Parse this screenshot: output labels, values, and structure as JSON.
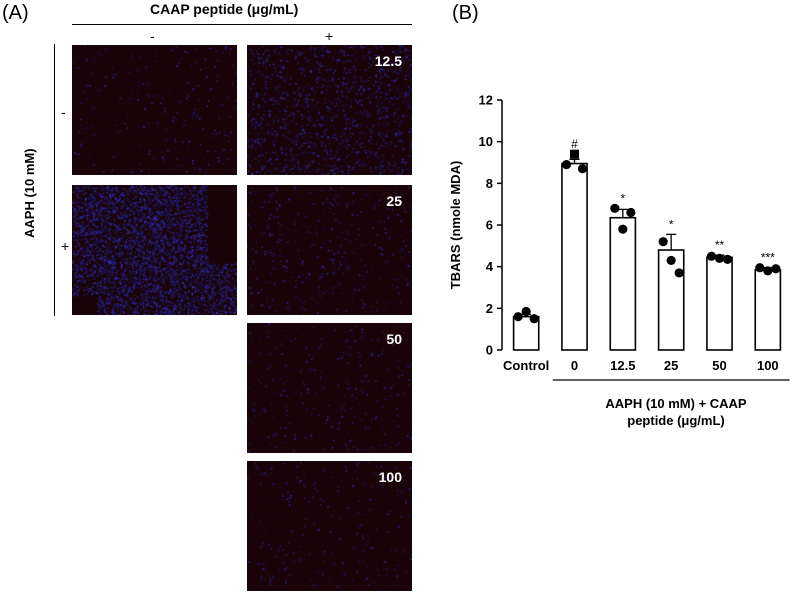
{
  "panel_a": {
    "label": "(A)",
    "column_header": "CAAP peptide (μg/mL)",
    "col_minus": "-",
    "col_plus": "+",
    "row_header": "AAPH (10 mM)",
    "row_minus": "-",
    "row_plus": "+",
    "tiles": [
      {
        "id": "r1c1",
        "label": "",
        "intensity": 0.05
      },
      {
        "id": "r1c2",
        "label": "12.5",
        "intensity": 0.25
      },
      {
        "id": "r2c1",
        "label": "",
        "intensity": 0.9
      },
      {
        "id": "r2c2",
        "label": "25",
        "intensity": 0.08
      },
      {
        "id": "r3c2",
        "label": "50",
        "intensity": 0.06
      },
      {
        "id": "r4c2",
        "label": "100",
        "intensity": 0.05
      }
    ]
  },
  "panel_b": {
    "label": "(B)",
    "group_caption_line1": "AAPH (10 mM) + CAAP",
    "group_caption_line2": "peptide (μg/mL)"
  },
  "chart_data": {
    "type": "bar",
    "categories": [
      "Control",
      "0",
      "12.5",
      "25",
      "50",
      "100"
    ],
    "values": [
      1.6,
      8.95,
      6.35,
      4.8,
      4.45,
      3.85
    ],
    "errors": [
      0.1,
      0.2,
      0.4,
      0.75,
      0.1,
      0.1
    ],
    "points": [
      [
        1.6,
        1.85,
        1.5
      ],
      [
        8.9,
        9.4,
        8.7
      ],
      [
        6.8,
        5.8,
        6.6
      ],
      [
        5.2,
        4.3,
        3.7
      ],
      [
        4.5,
        4.4,
        4.35
      ],
      [
        3.95,
        3.8,
        3.9
      ]
    ],
    "significance": [
      "",
      "#",
      "*",
      "*",
      "**",
      "***"
    ],
    "title": "",
    "xlabel": "AAPH (10 mM) + CAAP peptide (μg/mL)",
    "ylabel": "TBARS (nmole MDA)",
    "ylim": [
      0,
      12
    ],
    "yticks": [
      "0",
      "2",
      "4",
      "6",
      "8",
      "10",
      "12"
    ],
    "grid": false
  }
}
